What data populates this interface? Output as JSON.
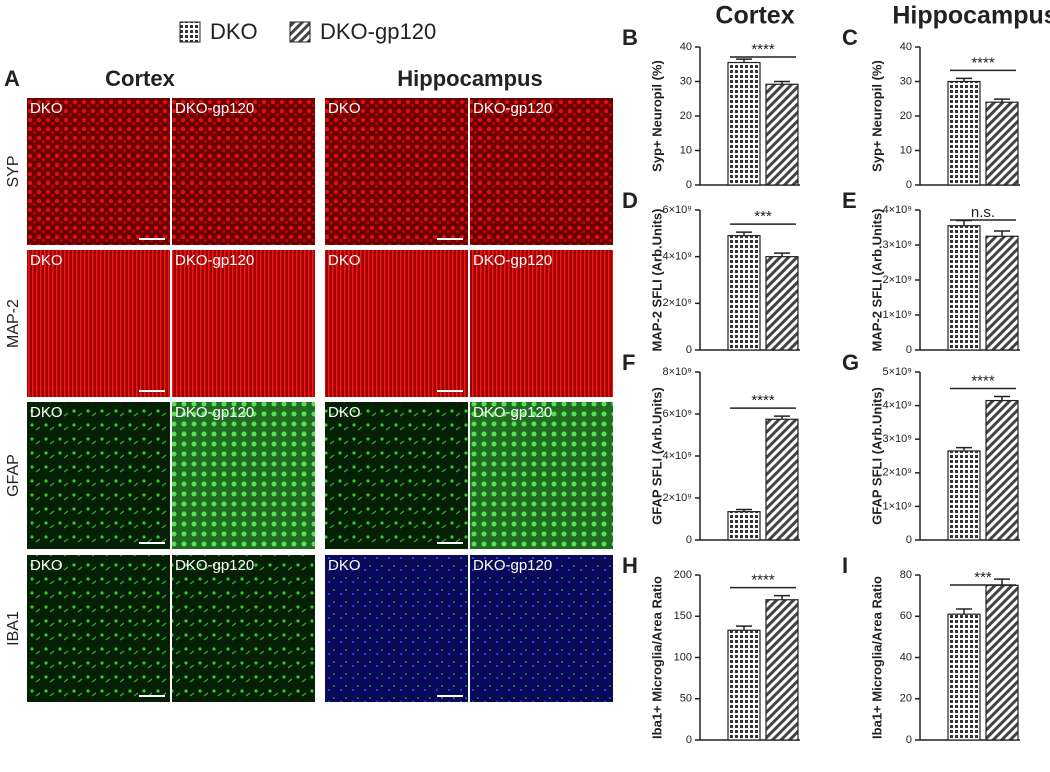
{
  "legend": [
    "DKO",
    "DKO-gp120"
  ],
  "panel_a": {
    "label": "A",
    "columns": [
      "Cortex",
      "Hippocampus"
    ],
    "rows": [
      "SYP",
      "MAP-2",
      "GFAP",
      "IBA1"
    ],
    "image_labels": [
      "DKO",
      "DKO-gp120"
    ]
  },
  "chart_data": [
    {
      "type": "bar",
      "panel": "B",
      "title": "Cortex",
      "ylabel": "Syp+ Neuropil (%)",
      "values": [
        35.5,
        29.2
      ],
      "errors": [
        1.0,
        0.8
      ],
      "significance": "****",
      "ylim": [
        0,
        40
      ],
      "yticks": [
        0,
        10,
        20,
        30,
        40
      ]
    },
    {
      "type": "bar",
      "panel": "C",
      "title": "Hippocampus",
      "ylabel": "Syp+ Neuropil (%)",
      "values": [
        30.0,
        24.0
      ],
      "errors": [
        0.9,
        0.9
      ],
      "significance": "****",
      "ylim": [
        0,
        40
      ],
      "yticks": [
        0,
        10,
        20,
        30,
        40
      ]
    },
    {
      "type": "bar",
      "panel": "D",
      "ylabel": "MAP-2 SFLI (Arb.Units)",
      "values": [
        4900000000,
        4000000000
      ],
      "errors": [
        150000000,
        150000000
      ],
      "significance": "***",
      "ylim": [
        0,
        6000000000
      ],
      "yticks": [
        0,
        {
          "value": 2000000000,
          "label": "2×10⁹"
        },
        {
          "value": 4000000000,
          "label": "4×10⁹"
        },
        {
          "value": 6000000000,
          "label": "6×10⁹"
        }
      ]
    },
    {
      "type": "bar",
      "panel": "E",
      "ylabel": "MAP-2 SFLI (Arb.Units)",
      "values": [
        3550000000,
        3250000000
      ],
      "errors": [
        150000000,
        150000000
      ],
      "significance": "n.s.",
      "ylim": [
        0,
        4000000000
      ],
      "yticks": [
        0,
        {
          "value": 1000000000,
          "label": "1×10⁹"
        },
        {
          "value": 2000000000,
          "label": "2×10⁹"
        },
        {
          "value": 3000000000,
          "label": "3×10⁹"
        },
        {
          "value": 4000000000,
          "label": "4×10⁹"
        }
      ]
    },
    {
      "type": "bar",
      "panel": "F",
      "ylabel": "GFAP SFLI (Arb.Units)",
      "values": [
        1350000000,
        5750000000
      ],
      "errors": [
        100000000,
        150000000
      ],
      "significance": "****",
      "ylim": [
        0,
        8000000000
      ],
      "yticks": [
        0,
        {
          "value": 2000000000,
          "label": "2×10⁹"
        },
        {
          "value": 4000000000,
          "label": "4×10⁹"
        },
        {
          "value": 6000000000,
          "label": "6×10⁹"
        },
        {
          "value": 8000000000,
          "label": "8×10⁹"
        }
      ]
    },
    {
      "type": "bar",
      "panel": "G",
      "ylabel": "GFAP SFLI (Arb.Units)",
      "values": [
        2650000000,
        4150000000
      ],
      "errors": [
        100000000,
        120000000
      ],
      "significance": "****",
      "ylim": [
        0,
        5000000000
      ],
      "yticks": [
        0,
        {
          "value": 1000000000,
          "label": "1×10⁹"
        },
        {
          "value": 2000000000,
          "label": "2×10⁹"
        },
        {
          "value": 3000000000,
          "label": "3×10⁹"
        },
        {
          "value": 4000000000,
          "label": "4×10⁹"
        },
        {
          "value": 5000000000,
          "label": "5×10⁹"
        }
      ]
    },
    {
      "type": "bar",
      "panel": "H",
      "ylabel": "Iba1+ Microglia/Area Ratio",
      "values": [
        133,
        170
      ],
      "errors": [
        5,
        5
      ],
      "significance": "****",
      "ylim": [
        0,
        200
      ],
      "yticks": [
        0,
        50,
        100,
        150,
        200
      ]
    },
    {
      "type": "bar",
      "panel": "I",
      "ylabel": "Iba1+ Microglia/Area Ratio",
      "values": [
        61,
        75
      ],
      "errors": [
        2.5,
        3
      ],
      "significance": "***",
      "ylim": [
        0,
        80
      ],
      "yticks": [
        0,
        20,
        40,
        60,
        80
      ]
    }
  ]
}
